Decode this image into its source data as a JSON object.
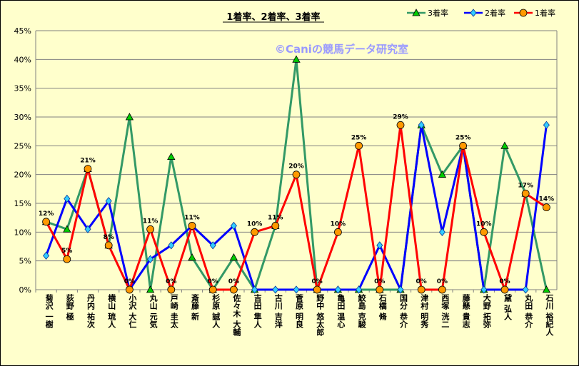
{
  "chart_data": {
    "type": "line",
    "title": "1着率、2着率、3着率",
    "watermark": "©Caniの競馬データ研究室",
    "ylim": [
      0,
      45
    ],
    "yticks": [
      "0%",
      "5%",
      "10%",
      "15%",
      "20%",
      "25%",
      "30%",
      "35%",
      "40%",
      "45%"
    ],
    "grid": true,
    "legend_position": "top-right",
    "categories": [
      "菊沢 一樹",
      "荻野 極",
      "丹内 祐次",
      "横山 琉人",
      "小沢 大仁",
      "丸山 元気",
      "戸崎 圭太",
      "斎藤 新",
      "杉原 誠人",
      "佐々木 大輔",
      "吉田 隼人",
      "古川 吉洋",
      "菅原 明良",
      "野中 悠太郎",
      "亀田 温心",
      "鮫島 克駿",
      "石橋 脩",
      "国分 恭介",
      "津村 明秀",
      "西塚 洸二",
      "藤懸 貴志",
      "大野 拓弥",
      "黛 弘人",
      "丸田 恭介",
      "石川 裕紀人"
    ],
    "series": [
      {
        "name": "3着率",
        "color": "#339966",
        "marker": "triangle",
        "values": [
          11.8,
          10.5,
          21,
          7.7,
          30,
          0,
          23.1,
          5.6,
          0,
          5.6,
          0,
          11.1,
          40,
          0,
          0,
          0,
          0,
          0,
          28.6,
          20,
          25,
          0,
          25,
          16.7,
          0
        ]
      },
      {
        "name": "2着率",
        "color": "#0000ff",
        "marker": "diamond",
        "values": [
          5.9,
          15.8,
          10.5,
          15.4,
          0,
          5.3,
          7.7,
          11.1,
          7.7,
          11.1,
          0,
          0,
          0,
          0,
          0,
          0,
          7.7,
          0,
          28.6,
          10,
          25,
          0,
          0,
          0,
          28.6
        ]
      },
      {
        "name": "1着率",
        "color": "#ff0000",
        "marker": "circle",
        "values": [
          11.8,
          5.3,
          21,
          7.7,
          0,
          10.5,
          0,
          11.1,
          0,
          0,
          10,
          11.1,
          20,
          0,
          10,
          25,
          0,
          28.6,
          0,
          0,
          25,
          10,
          0,
          16.7,
          14.3
        ],
        "data_labels": [
          "12%",
          "5%",
          "21%",
          "8%",
          "0%",
          "11%",
          "0%",
          "11%",
          "0%",
          "0%",
          "10%",
          "11%",
          "20%",
          "0%",
          "10%",
          "25%",
          "0%",
          "29%",
          "0%",
          "0%",
          "25%",
          "10%",
          "0%",
          "17%",
          "14%"
        ]
      }
    ]
  }
}
